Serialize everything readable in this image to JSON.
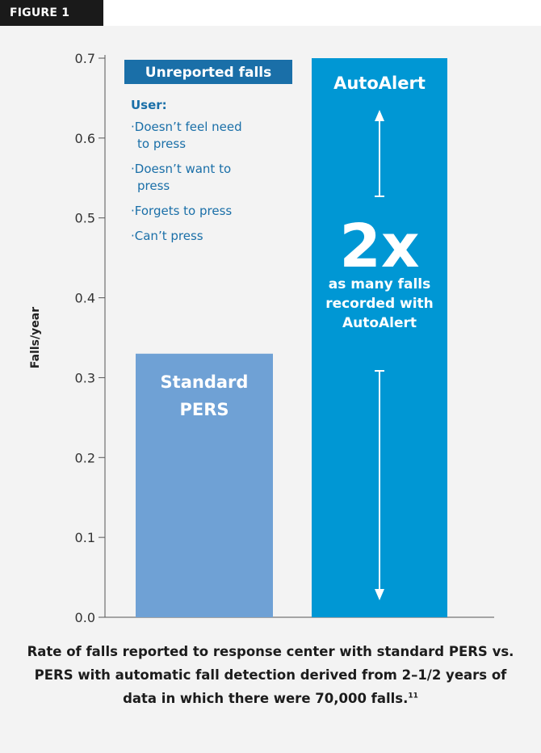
{
  "figure_label": "FIGURE 1",
  "chart_data": {
    "type": "bar",
    "ylabel": "Falls/year",
    "ylim": [
      0,
      0.7
    ],
    "yticks": [
      "0.0",
      "0.1",
      "0.2",
      "0.3",
      "0.4",
      "0.5",
      "0.6",
      "0.7"
    ],
    "categories": [
      "Standard PERS",
      "AutoAlert"
    ],
    "values": [
      0.33,
      0.7
    ],
    "bar_labels": [
      [
        "Standard",
        "PERS"
      ],
      [
        "AutoAlert"
      ]
    ],
    "colors": {
      "standard": "#6fa1d5",
      "autoalert": "#0097d4",
      "annotation": "#1a6fa8",
      "header_box": "#1a6fa8"
    },
    "annotation": {
      "box_title": "Unreported falls",
      "user_heading": "User:",
      "reasons": [
        [
          "Doesn’t feel need",
          "to press"
        ],
        [
          "Doesn’t want to",
          "press"
        ],
        [
          "Forgets to press"
        ],
        [
          "Can’t press"
        ]
      ]
    },
    "multiplier": {
      "value": "2x",
      "text_lines": [
        "as many falls",
        "recorded with",
        "AutoAlert"
      ]
    }
  },
  "caption": {
    "text": "Rate of falls reported to response center with standard PERS vs. PERS with automatic fall detection derived from 2–1/2 years of data in which there were 70,000 falls.",
    "superscript": "11"
  }
}
